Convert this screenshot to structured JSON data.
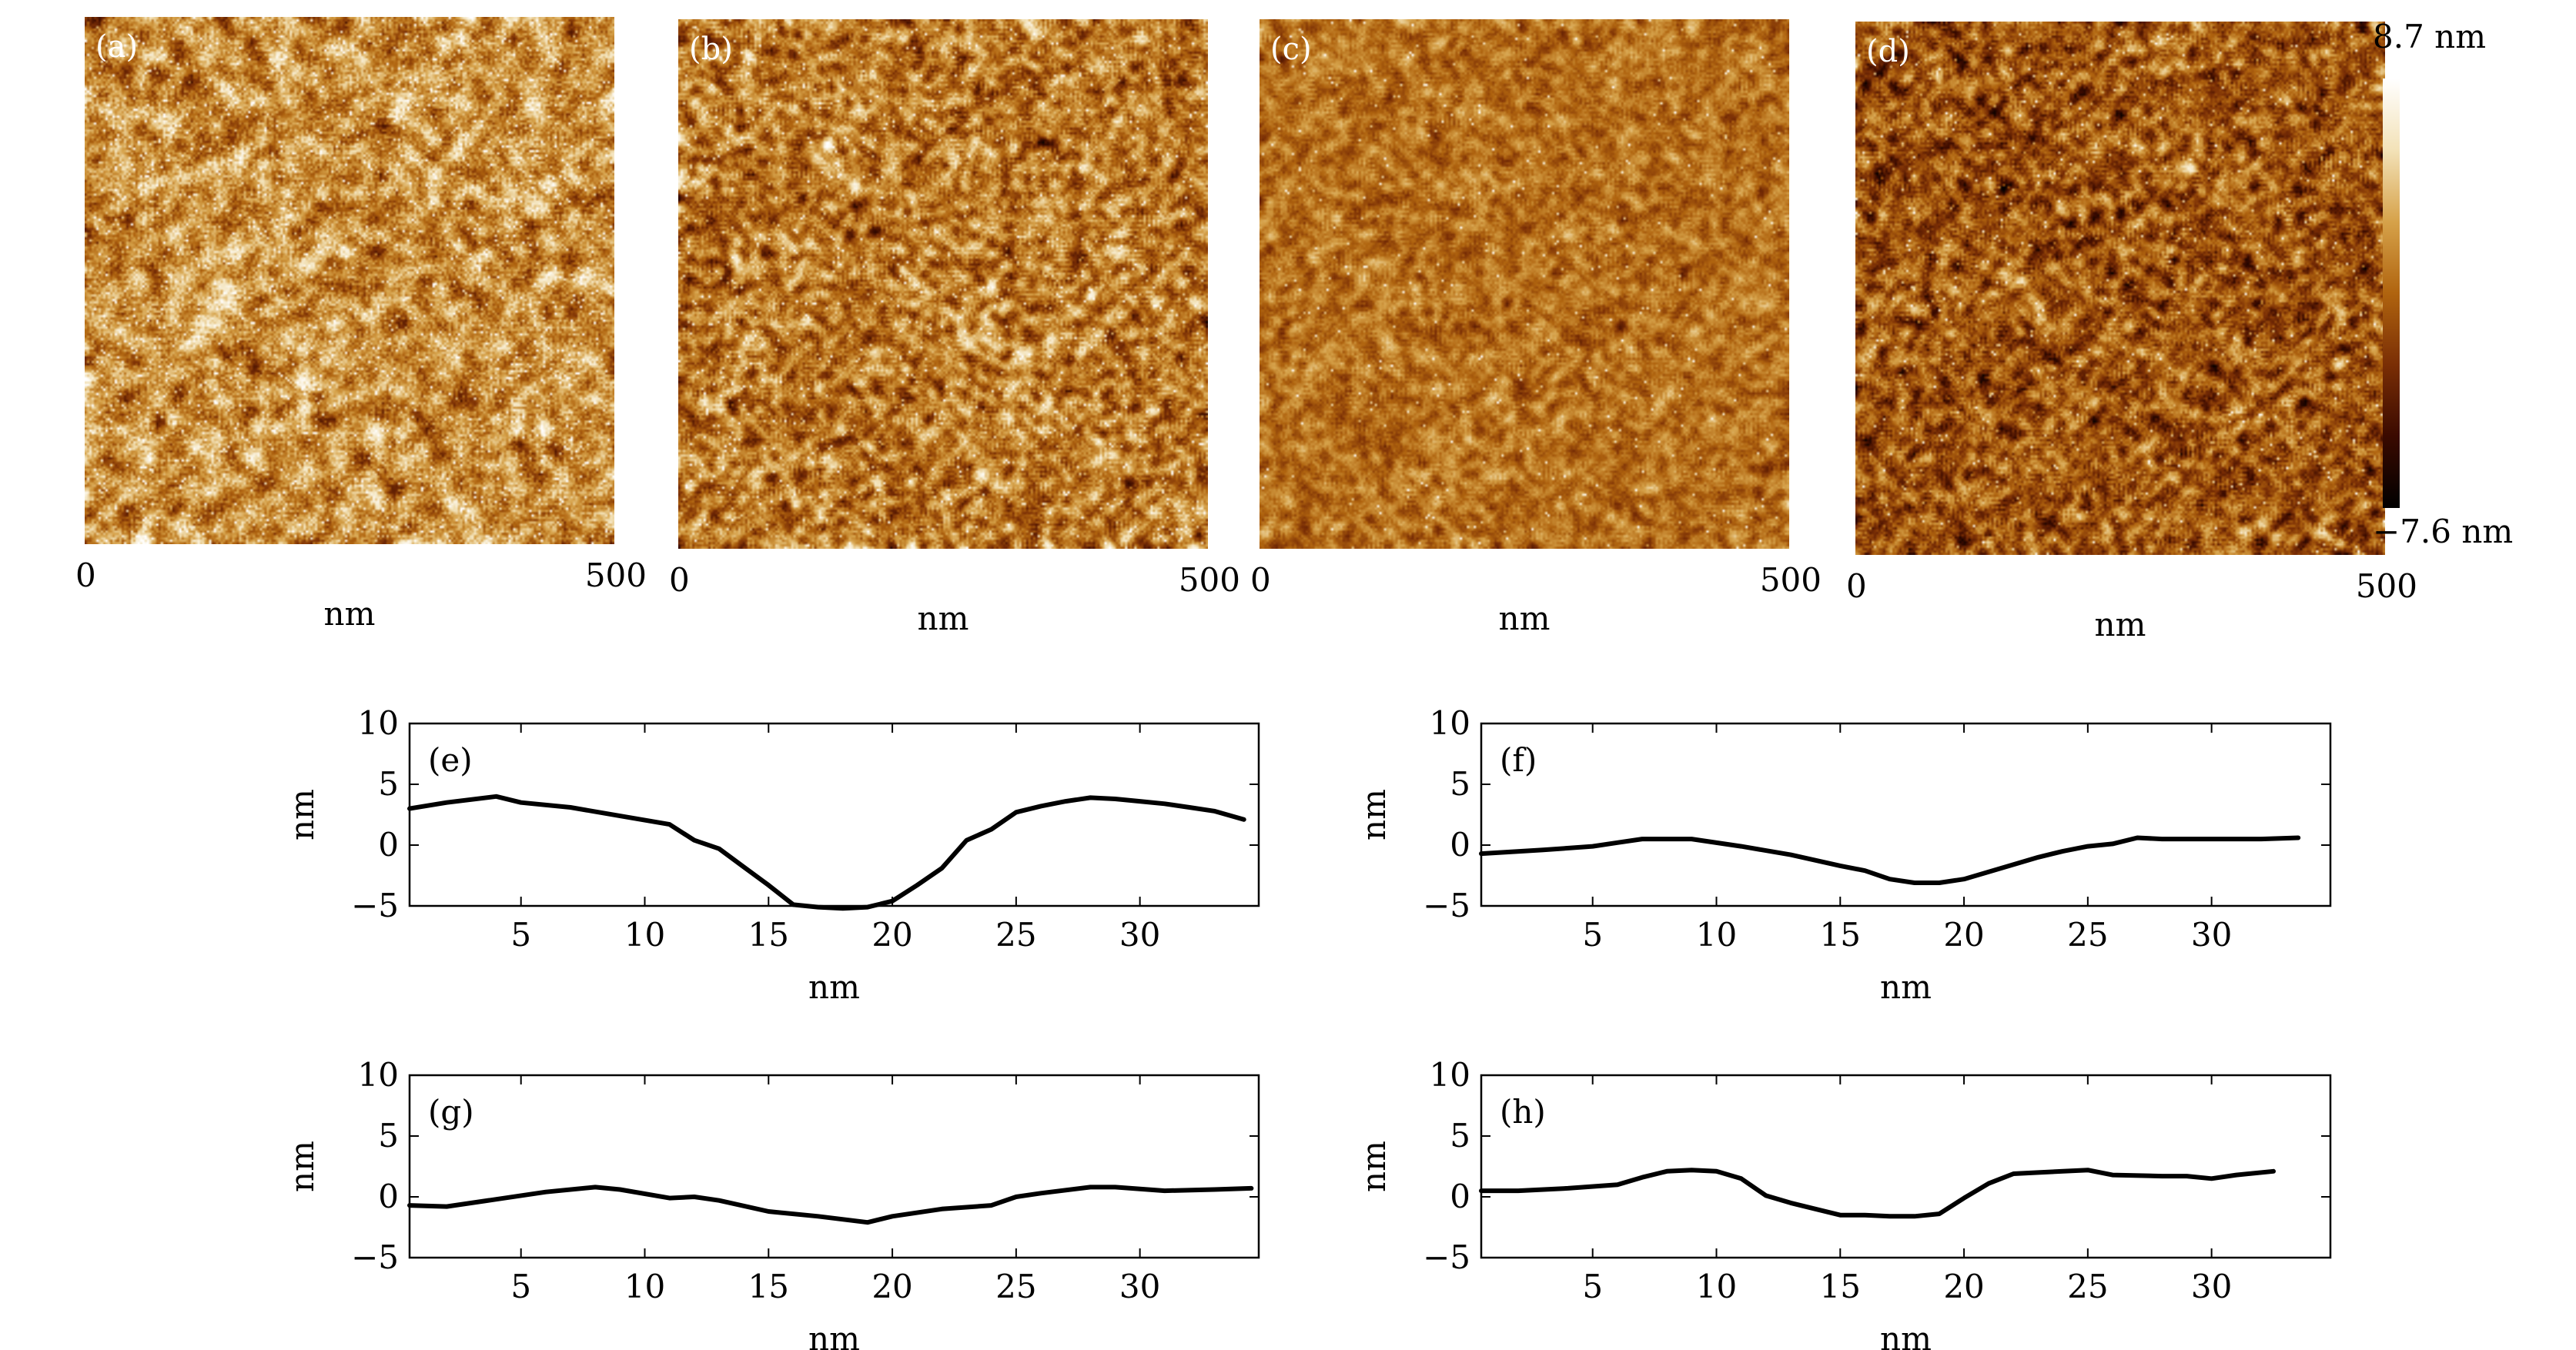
{
  "colorbar": {
    "max_label": "8.7 nm",
    "min_label": "−7.6 nm",
    "min_value": -7.6,
    "max_value": 8.7,
    "colors": [
      "#000000",
      "#3a0a00",
      "#7a2e05",
      "#b0640f",
      "#d6a24a",
      "#f3e2b8",
      "#ffffff"
    ]
  },
  "afm_panels": [
    {
      "label": "(a)",
      "xlabel": "nm",
      "tick_start": "0",
      "tick_end": "500",
      "brightness": 0.62,
      "contrast": 0.42,
      "grain": 9,
      "spots": 0.035
    },
    {
      "label": "(b)",
      "xlabel": "nm",
      "tick_start": "0",
      "tick_end": "500",
      "brightness": 0.55,
      "contrast": 0.34,
      "grain": 6,
      "spots": 0.02
    },
    {
      "label": "(c)",
      "xlabel": "nm",
      "tick_start": "0",
      "tick_end": "500",
      "brightness": 0.53,
      "contrast": 0.22,
      "grain": 5,
      "spots": 0.008
    },
    {
      "label": "(d)",
      "xlabel": "nm",
      "tick_start": "0",
      "tick_end": "500",
      "brightness": 0.45,
      "contrast": 0.34,
      "grain": 6,
      "spots": 0.015
    }
  ],
  "chart_data": [
    {
      "type": "line",
      "panel": "(e)",
      "xlabel": "nm",
      "ylabel": "nm",
      "xlim": [
        0.5,
        34.8
      ],
      "ylim": [
        -5,
        10
      ],
      "xticks": [
        5,
        10,
        15,
        20,
        25,
        30
      ],
      "yticks": [
        -5,
        0,
        5,
        10
      ],
      "x": [
        0.5,
        2,
        4,
        5,
        7,
        9,
        11,
        12,
        13,
        14,
        15,
        16,
        17,
        18,
        19,
        20,
        21,
        22,
        23,
        24,
        25,
        26,
        27,
        28,
        29,
        30,
        31,
        32,
        33,
        34.2
      ],
      "y": [
        3,
        3.5,
        4,
        3.5,
        3.1,
        2.4,
        1.7,
        0.4,
        -0.3,
        -1.8,
        -3.3,
        -4.9,
        -5.1,
        -5.2,
        -5.1,
        -4.6,
        -3.3,
        -1.9,
        0.4,
        1.3,
        2.7,
        3.2,
        3.6,
        3.9,
        3.8,
        3.6,
        3.4,
        3.1,
        2.8,
        2.1
      ]
    },
    {
      "type": "line",
      "panel": "(f)",
      "xlabel": "nm",
      "ylabel": "nm",
      "xlim": [
        0.5,
        34.8
      ],
      "ylim": [
        -5,
        10
      ],
      "xticks": [
        5,
        10,
        15,
        20,
        25,
        30
      ],
      "yticks": [
        -5,
        0,
        5,
        10
      ],
      "x": [
        0.5,
        3,
        5,
        6,
        7,
        9,
        11,
        13,
        15,
        16,
        17,
        18,
        19,
        20,
        21,
        22,
        23,
        24,
        25,
        26,
        27,
        28,
        30,
        32,
        33.5
      ],
      "y": [
        -0.7,
        -0.4,
        -0.1,
        0.2,
        0.5,
        0.5,
        -0.1,
        -0.8,
        -1.7,
        -2.1,
        -2.8,
        -3.1,
        -3.1,
        -2.8,
        -2.2,
        -1.6,
        -1.0,
        -0.5,
        -0.1,
        0.1,
        0.6,
        0.5,
        0.5,
        0.5,
        0.6
      ]
    },
    {
      "type": "line",
      "panel": "(g)",
      "xlabel": "nm",
      "ylabel": "nm",
      "xlim": [
        0.5,
        34.8
      ],
      "ylim": [
        -5,
        10
      ],
      "xticks": [
        5,
        10,
        15,
        20,
        25,
        30
      ],
      "yticks": [
        -5,
        0,
        5,
        10
      ],
      "x": [
        0.5,
        2,
        4,
        6,
        8,
        9,
        11,
        12,
        13,
        15,
        17,
        19,
        20,
        22,
        24,
        25,
        26,
        28,
        29,
        31,
        33,
        34.5
      ],
      "y": [
        -0.7,
        -0.8,
        -0.2,
        0.4,
        0.8,
        0.6,
        -0.1,
        0,
        -0.3,
        -1.2,
        -1.6,
        -2.1,
        -1.6,
        -1.0,
        -0.7,
        0,
        0.3,
        0.8,
        0.8,
        0.5,
        0.6,
        0.7
      ]
    },
    {
      "type": "line",
      "panel": "(h)",
      "xlabel": "nm",
      "ylabel": "nm",
      "xlim": [
        0.5,
        34.8
      ],
      "ylim": [
        -5,
        10
      ],
      "xticks": [
        5,
        10,
        15,
        20,
        25,
        30
      ],
      "yticks": [
        -5,
        0,
        5,
        10
      ],
      "x": [
        0.5,
        2,
        4,
        6,
        7,
        8,
        9,
        10,
        11,
        12,
        13,
        14,
        15,
        16,
        17,
        18,
        19,
        20,
        21,
        22,
        23,
        24,
        25,
        26,
        28,
        29,
        30,
        31,
        32.5
      ],
      "y": [
        0.5,
        0.5,
        0.7,
        1.0,
        1.6,
        2.1,
        2.2,
        2.1,
        1.5,
        0.1,
        -0.5,
        -1.0,
        -1.5,
        -1.5,
        -1.6,
        -1.6,
        -1.4,
        -0.1,
        1.1,
        1.9,
        2.0,
        2.1,
        2.2,
        1.8,
        1.7,
        1.7,
        1.5,
        1.8,
        2.1
      ]
    }
  ]
}
